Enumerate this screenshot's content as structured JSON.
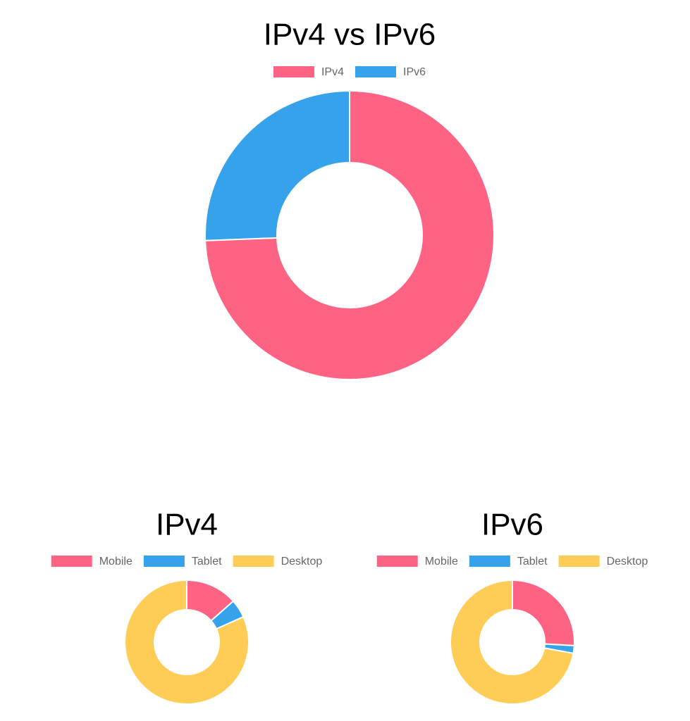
{
  "chart_data": [
    {
      "type": "doughnut",
      "title": "IPv4 vs IPv6",
      "categories": [
        "IPv4",
        "IPv6"
      ],
      "values": [
        74.4,
        25.6
      ],
      "colors": [
        "#ff6384",
        "#36a2eb"
      ]
    },
    {
      "type": "doughnut",
      "title": "IPv4",
      "categories": [
        "Mobile",
        "Tablet",
        "Desktop"
      ],
      "values": [
        13.5,
        4.8,
        81.7
      ],
      "colors": [
        "#ff6384",
        "#36a2eb",
        "#ffcd56"
      ]
    },
    {
      "type": "doughnut",
      "title": "IPv6",
      "categories": [
        "Mobile",
        "Tablet",
        "Desktop"
      ],
      "values": [
        25.9,
        2.0,
        72.1
      ],
      "colors": [
        "#ff6384",
        "#36a2eb",
        "#ffcd56"
      ]
    }
  ]
}
